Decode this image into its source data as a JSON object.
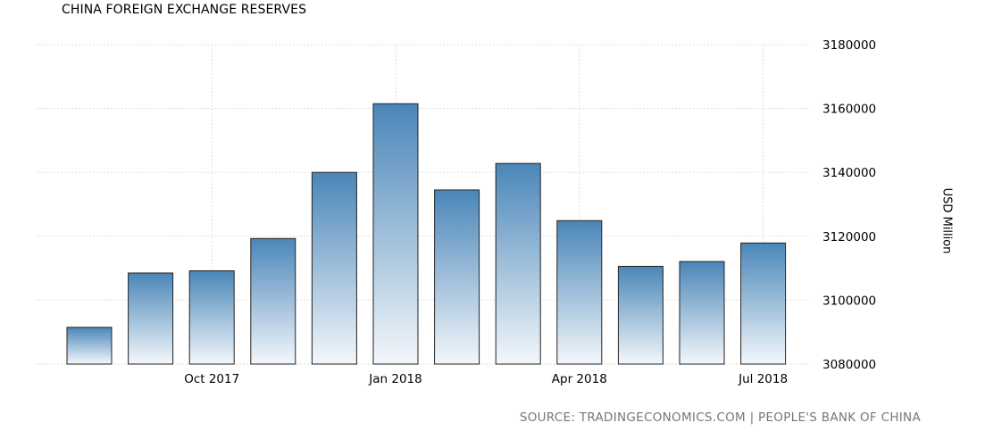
{
  "chart_data": {
    "type": "bar",
    "title": "CHINA FOREIGN EXCHANGE RESERVES",
    "ylabel": "USD Million",
    "source": "SOURCE: TRADINGECONOMICS.COM | PEOPLE'S BANK OF CHINA",
    "categories": [
      "Aug 2017",
      "Sep 2017",
      "Oct 2017",
      "Nov 2017",
      "Dec 2017",
      "Jan 2018",
      "Feb 2018",
      "Mar 2018",
      "Apr 2018",
      "May 2018",
      "Jun 2018",
      "Jul 2018"
    ],
    "values": [
      3091500,
      3108500,
      3109200,
      3119300,
      3140000,
      3161500,
      3134500,
      3142800,
      3124900,
      3110600,
      3112100,
      3117900
    ],
    "ylim": [
      3080000,
      3180000
    ],
    "yticks": [
      "3080000",
      "3100000",
      "3120000",
      "3140000",
      "3160000",
      "3180000"
    ],
    "xtick_labels": [
      {
        "category": "Oct 2017",
        "label": "Oct 2017"
      },
      {
        "category": "Jan 2018",
        "label": "Jan 2018"
      },
      {
        "category": "Apr 2018",
        "label": "Apr 2018"
      },
      {
        "category": "Jul 2018",
        "label": "Jul 2018"
      }
    ],
    "grid": true,
    "bar_color_top": "#4a86b8",
    "bar_color_bottom": "#f3f7fb"
  }
}
